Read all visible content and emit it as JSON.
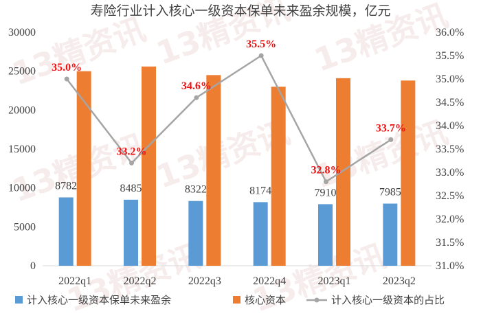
{
  "chart_data": {
    "type": "bar+line",
    "title": "寿险行业计入核心一级资本保单未来盈余规模，亿元",
    "categories": [
      "2022q1",
      "2022q2",
      "2022q3",
      "2022q4",
      "2023q1",
      "2023q2"
    ],
    "series": [
      {
        "name": "计入核心一级资本保单未来盈余",
        "type": "bar",
        "axis": "left",
        "values": [
          8782,
          8485,
          8322,
          8174,
          7910,
          7985
        ],
        "color": "#5b9bd5",
        "labels": [
          "8782",
          "8485",
          "8322",
          "8174",
          "7910",
          "7985"
        ]
      },
      {
        "name": "核心资本",
        "type": "bar",
        "axis": "left",
        "values": [
          25000,
          25600,
          24500,
          23000,
          24100,
          23800
        ],
        "color": "#ed7d31"
      },
      {
        "name": "计入核心一级资本的占比",
        "type": "line",
        "axis": "right",
        "values": [
          35.0,
          33.2,
          34.6,
          35.5,
          32.8,
          33.7
        ],
        "color": "#a5a5a5",
        "labels": [
          "35.0%",
          "33.2%",
          "34.6%",
          "35.5%",
          "32.8%",
          "33.7%"
        ],
        "label_color": "#ee1111"
      }
    ],
    "y_left": {
      "min": 0,
      "max": 30000,
      "step": 5000,
      "ticks": [
        "0",
        "5000",
        "10000",
        "15000",
        "20000",
        "25000",
        "30000"
      ]
    },
    "y_right": {
      "min": 31.0,
      "max": 36.0,
      "step": 0.5,
      "ticks": [
        "31.0%",
        "31.5%",
        "32.0%",
        "32.5%",
        "33.0%",
        "33.5%",
        "34.0%",
        "34.5%",
        "35.0%",
        "35.5%",
        "36.0%"
      ]
    },
    "grid": false,
    "legend_position": "bottom"
  },
  "watermark": {
    "text": "13精资讯"
  }
}
